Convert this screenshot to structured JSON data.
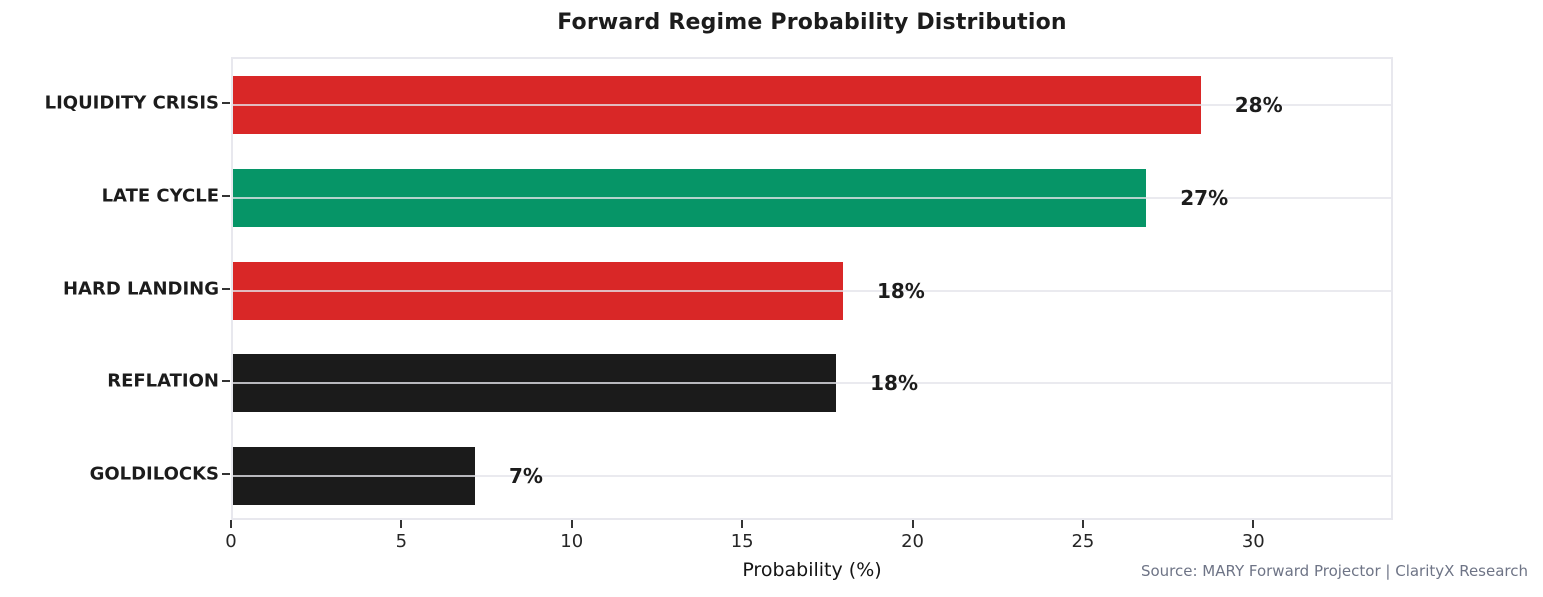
{
  "chart_data": {
    "type": "bar",
    "orientation": "horizontal",
    "title": "Forward Regime Probability Distribution",
    "categories": [
      "LIQUIDITY CRISIS",
      "LATE CYCLE",
      "HARD LANDING",
      "REFLATION",
      "GOLDILOCKS"
    ],
    "values": [
      28.4,
      26.8,
      17.9,
      17.7,
      7.1
    ],
    "value_labels": [
      "28%",
      "27%",
      "18%",
      "18%",
      "7%"
    ],
    "bar_colors": [
      "#d92727",
      "#069567",
      "#d92727",
      "#1b1b1b",
      "#1b1b1b"
    ],
    "xlabel": "Probability (%)",
    "xlim": [
      0,
      34.1
    ],
    "x_ticks": [
      0,
      5,
      10,
      15,
      20,
      25,
      30
    ],
    "grid": "horizontal-only",
    "legend": "none",
    "source_note": "Source: MARY Forward Projector | ClarityX Research"
  },
  "colors": {
    "background": "#ffffff",
    "red_bar": "#d92727",
    "green_bar": "#069567",
    "black_bar": "#1b1b1b",
    "spine": "#e8e8ee",
    "tick_mark": "#333333",
    "text_primary": "#1c1c1c",
    "source_text": "#6e7486"
  }
}
